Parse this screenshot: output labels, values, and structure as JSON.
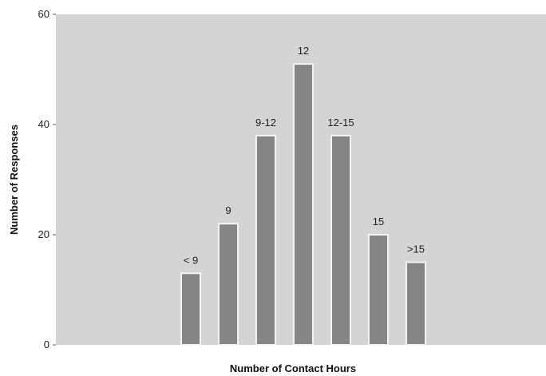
{
  "chart_data": {
    "type": "bar",
    "title": "",
    "xlabel": "Number of Contact Hours",
    "ylabel": "Number of Responses",
    "categories": [
      "< 9",
      "9",
      "9-12",
      "12",
      "12-15",
      "15",
      ">15"
    ],
    "values": [
      13,
      22,
      38,
      51,
      38,
      20,
      15
    ],
    "ylim": [
      0,
      60
    ],
    "yticks": [
      0,
      20,
      40,
      60
    ],
    "grid": false,
    "legend": "none"
  },
  "colors": {
    "plot_background": "#d4d4d4",
    "bar_fill": "#858585",
    "bar_edge": "#f4f4f4",
    "text": "#222222"
  }
}
